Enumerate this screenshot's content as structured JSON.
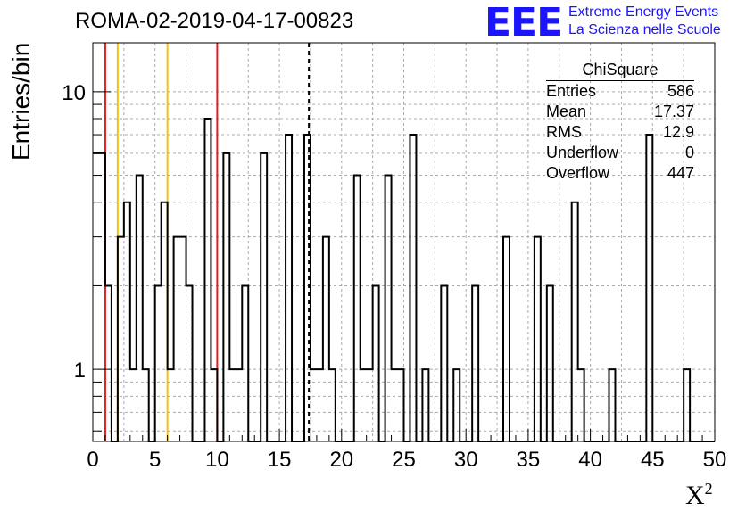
{
  "page": {
    "title": "ROMA-02-2019-04-17-00823",
    "logo_text": "EEE",
    "logo_line1": "Extreme Energy Events",
    "logo_line2": "La Scienza nelle Scuole",
    "ylabel": "Entries/bin",
    "xlabel": "X",
    "xlabel_sup": "2"
  },
  "stats": {
    "name": "ChiSquare",
    "rows": [
      {
        "label": "Entries",
        "value": "586"
      },
      {
        "label": "Mean",
        "value": "17.37"
      },
      {
        "label": "RMS",
        "value": "12.9"
      },
      {
        "label": "Underflow",
        "value": "0"
      },
      {
        "label": "Overflow",
        "value": "447"
      }
    ]
  },
  "colors": {
    "red_line": "#e41a1c",
    "yellow_line": "#f4c20d",
    "logo": "#1a14ff",
    "histogram": "#000000",
    "grid": "#aaaaaa"
  },
  "chart_data": {
    "type": "bar",
    "style": "step histogram",
    "xlim": [
      0,
      50
    ],
    "ylim": [
      0.55,
      15
    ],
    "log_y": true,
    "grid": true,
    "bin_width": 0.5,
    "xticks": [
      0,
      5,
      10,
      15,
      20,
      25,
      30,
      35,
      40,
      45,
      50
    ],
    "yticks": [
      {
        "value": 1,
        "label": "1"
      },
      {
        "value": 10,
        "label": "10"
      }
    ],
    "bins": [
      {
        "x0": 0.0,
        "value": 6
      },
      {
        "x0": 0.5,
        "value": 6
      },
      {
        "x0": 1.0,
        "value": 2
      },
      {
        "x0": 1.5,
        "value": 0
      },
      {
        "x0": 2.0,
        "value": 3
      },
      {
        "x0": 2.5,
        "value": 4
      },
      {
        "x0": 3.0,
        "value": 1
      },
      {
        "x0": 3.5,
        "value": 5
      },
      {
        "x0": 4.0,
        "value": 1
      },
      {
        "x0": 4.5,
        "value": 0
      },
      {
        "x0": 5.0,
        "value": 2
      },
      {
        "x0": 5.5,
        "value": 4
      },
      {
        "x0": 6.0,
        "value": 1
      },
      {
        "x0": 6.5,
        "value": 3
      },
      {
        "x0": 7.0,
        "value": 3
      },
      {
        "x0": 7.5,
        "value": 2
      },
      {
        "x0": 8.0,
        "value": 0
      },
      {
        "x0": 8.5,
        "value": 0
      },
      {
        "x0": 9.0,
        "value": 8
      },
      {
        "x0": 9.5,
        "value": 1
      },
      {
        "x0": 10.0,
        "value": 0
      },
      {
        "x0": 10.5,
        "value": 6
      },
      {
        "x0": 11.0,
        "value": 1
      },
      {
        "x0": 11.5,
        "value": 1
      },
      {
        "x0": 12.0,
        "value": 2
      },
      {
        "x0": 12.5,
        "value": 0
      },
      {
        "x0": 13.0,
        "value": 0
      },
      {
        "x0": 13.5,
        "value": 6
      },
      {
        "x0": 14.0,
        "value": 0
      },
      {
        "x0": 14.5,
        "value": 0
      },
      {
        "x0": 15.0,
        "value": 0
      },
      {
        "x0": 15.5,
        "value": 7
      },
      {
        "x0": 16.0,
        "value": 0
      },
      {
        "x0": 16.5,
        "value": 0
      },
      {
        "x0": 17.0,
        "value": 7
      },
      {
        "x0": 17.5,
        "value": 1
      },
      {
        "x0": 18.0,
        "value": 1
      },
      {
        "x0": 18.5,
        "value": 3
      },
      {
        "x0": 19.0,
        "value": 1
      },
      {
        "x0": 19.5,
        "value": 0
      },
      {
        "x0": 20.0,
        "value": 0
      },
      {
        "x0": 20.5,
        "value": 0
      },
      {
        "x0": 21.0,
        "value": 5
      },
      {
        "x0": 21.5,
        "value": 1
      },
      {
        "x0": 22.0,
        "value": 1
      },
      {
        "x0": 22.5,
        "value": 2
      },
      {
        "x0": 23.0,
        "value": 0
      },
      {
        "x0": 23.5,
        "value": 5
      },
      {
        "x0": 24.0,
        "value": 1
      },
      {
        "x0": 24.5,
        "value": 1
      },
      {
        "x0": 25.0,
        "value": 0
      },
      {
        "x0": 25.5,
        "value": 7
      },
      {
        "x0": 26.0,
        "value": 0
      },
      {
        "x0": 26.5,
        "value": 1
      },
      {
        "x0": 27.0,
        "value": 0
      },
      {
        "x0": 27.5,
        "value": 0
      },
      {
        "x0": 28.0,
        "value": 2
      },
      {
        "x0": 28.5,
        "value": 0
      },
      {
        "x0": 29.0,
        "value": 1
      },
      {
        "x0": 29.5,
        "value": 0
      },
      {
        "x0": 30.0,
        "value": 0
      },
      {
        "x0": 30.5,
        "value": 2
      },
      {
        "x0": 31.0,
        "value": 0
      },
      {
        "x0": 31.5,
        "value": 0
      },
      {
        "x0": 32.0,
        "value": 0
      },
      {
        "x0": 32.5,
        "value": 0
      },
      {
        "x0": 33.0,
        "value": 3
      },
      {
        "x0": 33.5,
        "value": 0
      },
      {
        "x0": 34.0,
        "value": 0
      },
      {
        "x0": 34.5,
        "value": 0
      },
      {
        "x0": 35.0,
        "value": 0
      },
      {
        "x0": 35.5,
        "value": 3
      },
      {
        "x0": 36.0,
        "value": 0
      },
      {
        "x0": 36.5,
        "value": 2
      },
      {
        "x0": 37.0,
        "value": 0
      },
      {
        "x0": 37.5,
        "value": 0
      },
      {
        "x0": 38.0,
        "value": 0
      },
      {
        "x0": 38.5,
        "value": 4
      },
      {
        "x0": 39.0,
        "value": 1
      },
      {
        "x0": 39.5,
        "value": 0
      },
      {
        "x0": 40.0,
        "value": 0
      },
      {
        "x0": 40.5,
        "value": 0
      },
      {
        "x0": 41.0,
        "value": 0
      },
      {
        "x0": 41.5,
        "value": 1
      },
      {
        "x0": 42.0,
        "value": 0
      },
      {
        "x0": 42.5,
        "value": 0
      },
      {
        "x0": 43.0,
        "value": 0
      },
      {
        "x0": 43.5,
        "value": 0
      },
      {
        "x0": 44.0,
        "value": 0
      },
      {
        "x0": 44.5,
        "value": 7
      },
      {
        "x0": 45.0,
        "value": 0
      },
      {
        "x0": 45.5,
        "value": 0
      },
      {
        "x0": 46.0,
        "value": 0
      },
      {
        "x0": 46.5,
        "value": 0
      },
      {
        "x0": 47.0,
        "value": 0
      },
      {
        "x0": 47.5,
        "value": 1
      },
      {
        "x0": 48.0,
        "value": 0
      },
      {
        "x0": 48.5,
        "value": 0
      },
      {
        "x0": 49.0,
        "value": 0
      },
      {
        "x0": 49.5,
        "value": 0
      }
    ],
    "vertical_lines": [
      {
        "x": 1.0,
        "color": "red",
        "style": "solid"
      },
      {
        "x": 2.0,
        "color": "yellow",
        "style": "solid"
      },
      {
        "x": 6.0,
        "color": "yellow",
        "style": "solid"
      },
      {
        "x": 10.0,
        "color": "red",
        "style": "solid"
      },
      {
        "x": 17.37,
        "color": "black",
        "style": "dashed"
      }
    ]
  }
}
